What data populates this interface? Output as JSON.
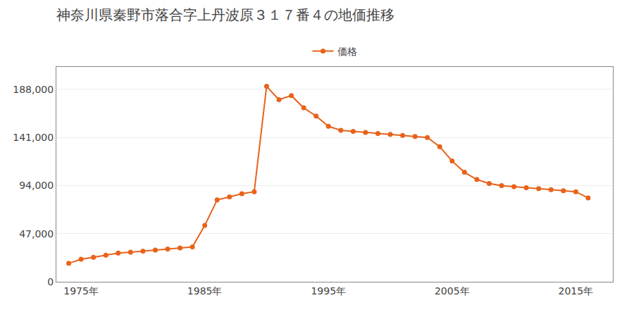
{
  "chart_data": {
    "type": "line",
    "title": "神奈川県秦野市落合字上丹波原３１７番４の地価推移",
    "x": [
      1974,
      1975,
      1976,
      1977,
      1978,
      1979,
      1980,
      1981,
      1982,
      1983,
      1984,
      1985,
      1986,
      1987,
      1988,
      1989,
      1990,
      1991,
      1992,
      1993,
      1994,
      1995,
      1996,
      1997,
      1998,
      1999,
      2000,
      2001,
      2002,
      2003,
      2004,
      2005,
      2006,
      2007,
      2008,
      2009,
      2010,
      2011,
      2012,
      2013,
      2014,
      2015,
      2016
    ],
    "series": [
      {
        "name": "価格",
        "color": "#e8621a",
        "marker": "circle",
        "line_style": "solid",
        "values": [
          18000,
          22000,
          24000,
          26000,
          28000,
          29000,
          30000,
          31000,
          32000,
          33000,
          34000,
          55000,
          80000,
          83000,
          86000,
          88000,
          191000,
          178000,
          182000,
          170000,
          162000,
          152000,
          148000,
          147000,
          146000,
          145000,
          144000,
          143000,
          142000,
          141000,
          132000,
          118000,
          107000,
          100000,
          96000,
          94000,
          93000,
          92000,
          91000,
          90000,
          89000,
          88000,
          82000
        ]
      }
    ],
    "xlim": [
      1973,
      2018
    ],
    "xticks": [
      {
        "value": 1975,
        "label": "1975年"
      },
      {
        "value": 1985,
        "label": "1985年"
      },
      {
        "value": 1995,
        "label": "1995年"
      },
      {
        "value": 2005,
        "label": "2005年"
      },
      {
        "value": 2015,
        "label": "2015年"
      }
    ],
    "ylim": [
      0,
      210000
    ],
    "yticks": [
      0,
      {
        "value": 47000,
        "label": "47,000"
      },
      {
        "value": 94000,
        "label": "94,000"
      },
      {
        "value": 141000,
        "label": "141,000"
      },
      {
        "value": 188000,
        "label": "188,000"
      }
    ],
    "grid": "y",
    "legend": "top"
  }
}
